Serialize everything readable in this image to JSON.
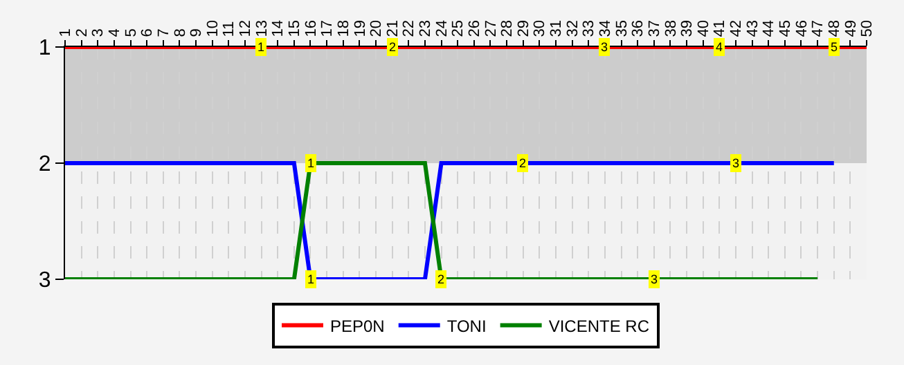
{
  "chart_data": {
    "type": "line",
    "x": [
      1,
      2,
      3,
      4,
      5,
      6,
      7,
      8,
      9,
      10,
      11,
      12,
      13,
      14,
      15,
      16,
      17,
      18,
      19,
      20,
      21,
      22,
      23,
      24,
      25,
      26,
      27,
      28,
      29,
      30,
      31,
      32,
      33,
      34,
      35,
      36,
      37,
      38,
      39,
      40,
      41,
      42,
      43,
      44,
      45,
      46,
      47,
      48,
      49,
      50
    ],
    "series": [
      {
        "name": "PEP0N",
        "color": "#ff0000",
        "values": [
          1,
          1,
          1,
          1,
          1,
          1,
          1,
          1,
          1,
          1,
          1,
          1,
          1,
          1,
          1,
          1,
          1,
          1,
          1,
          1,
          1,
          1,
          1,
          1,
          1,
          1,
          1,
          1,
          1,
          1,
          1,
          1,
          1,
          1,
          1,
          1,
          1,
          1,
          1,
          1,
          1,
          1,
          1,
          1,
          1,
          1,
          1,
          1,
          1,
          1
        ]
      },
      {
        "name": "TONI",
        "color": "#0000ff",
        "values": [
          2,
          2,
          2,
          2,
          2,
          2,
          2,
          2,
          2,
          2,
          2,
          2,
          2,
          2,
          2,
          3,
          3,
          3,
          3,
          3,
          3,
          3,
          3,
          2,
          2,
          2,
          2,
          2,
          2,
          2,
          2,
          2,
          2,
          2,
          2,
          2,
          2,
          2,
          2,
          2,
          2,
          2,
          2,
          2,
          2,
          2,
          2,
          2,
          null,
          null
        ]
      },
      {
        "name": "VICENTE RC",
        "color": "#008000",
        "values": [
          3,
          3,
          3,
          3,
          3,
          3,
          3,
          3,
          3,
          3,
          3,
          3,
          3,
          3,
          3,
          2,
          2,
          2,
          2,
          2,
          2,
          2,
          2,
          3,
          3,
          3,
          3,
          3,
          3,
          3,
          3,
          3,
          3,
          3,
          3,
          3,
          3,
          3,
          3,
          3,
          3,
          3,
          3,
          3,
          3,
          3,
          3,
          null,
          null,
          null
        ]
      }
    ],
    "xlim": [
      1,
      50
    ],
    "xticks": [
      1,
      2,
      3,
      4,
      5,
      6,
      7,
      8,
      9,
      10,
      11,
      12,
      13,
      14,
      15,
      16,
      17,
      18,
      19,
      20,
      21,
      22,
      23,
      24,
      25,
      26,
      27,
      28,
      29,
      30,
      31,
      32,
      33,
      34,
      35,
      36,
      37,
      38,
      39,
      40,
      41,
      42,
      43,
      44,
      45,
      46,
      47,
      48,
      49,
      50
    ],
    "ylim": [
      3,
      1
    ],
    "yticks": [
      1,
      2,
      3
    ],
    "grid": "x",
    "line_style": "solid",
    "marker": "none",
    "legend": "bottom",
    "bands": [
      {
        "axis": "y",
        "from": 1,
        "to": 2,
        "color": "#cccccc"
      }
    ],
    "annotations": [
      {
        "text": "1",
        "x": 13,
        "y": 1
      },
      {
        "text": "2",
        "x": 21,
        "y": 1
      },
      {
        "text": "3",
        "x": 34,
        "y": 1
      },
      {
        "text": "4",
        "x": 41,
        "y": 1
      },
      {
        "text": "5",
        "x": 48,
        "y": 1
      },
      {
        "text": "1",
        "x": 16,
        "y": 3
      },
      {
        "text": "2",
        "x": 29,
        "y": 2
      },
      {
        "text": "3",
        "x": 42,
        "y": 2
      },
      {
        "text": "1",
        "x": 16,
        "y": 2
      },
      {
        "text": "2",
        "x": 24,
        "y": 3
      },
      {
        "text": "3",
        "x": 37,
        "y": 3
      }
    ]
  }
}
